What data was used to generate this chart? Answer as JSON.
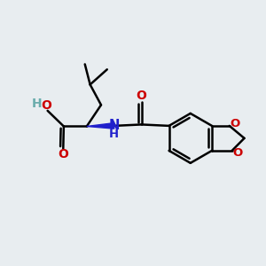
{
  "background_color": "#e8edf0",
  "bond_color": "#000000",
  "bond_width": 1.8,
  "oxygen_color": "#cc0000",
  "nitrogen_color": "#2020cc",
  "hydrogen_color": "#6aacac",
  "figsize": [
    3.0,
    3.0
  ],
  "dpi": 100,
  "xlim": [
    0,
    10
  ],
  "ylim": [
    0,
    10
  ]
}
